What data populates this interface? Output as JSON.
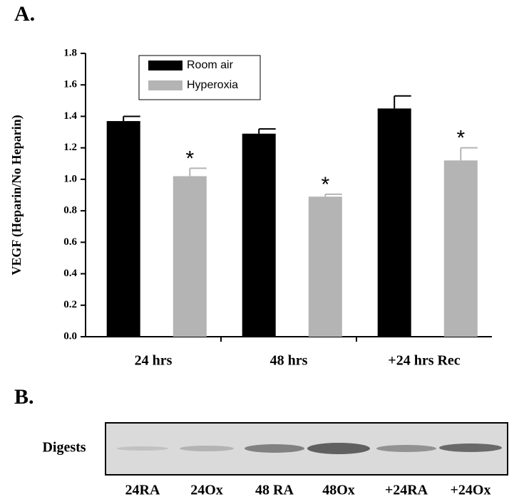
{
  "panels": {
    "a": "A.",
    "b": "B."
  },
  "chart_data": {
    "type": "bar",
    "ylabel": "VEGF (Heparin/No Heparin)",
    "categories": [
      "24 hrs",
      "48 hrs",
      "+24 hrs Rec"
    ],
    "series": [
      {
        "name": "Room air",
        "color": "#000000",
        "values": [
          1.37,
          1.29,
          1.45
        ],
        "errors": [
          0.03,
          0.03,
          0.08
        ]
      },
      {
        "name": "Hyperoxia",
        "color": "#b4b4b4",
        "values": [
          1.02,
          0.89,
          1.12
        ],
        "errors": [
          0.05,
          0.015,
          0.08
        ]
      }
    ],
    "annotations": [
      "*",
      "*",
      "*"
    ],
    "ylim": [
      0,
      1.8
    ],
    "yticks": [
      {
        "value": 0,
        "label": "0.0"
      },
      {
        "value": 0.2,
        "label": "0.2"
      },
      {
        "value": 0.4,
        "label": "0.4"
      },
      {
        "value": 0.6,
        "label": "0.6"
      },
      {
        "value": 0.8,
        "label": "0.8"
      },
      {
        "value": 1.0,
        "label": "1.0"
      },
      {
        "value": 1.2,
        "label": "1.2"
      },
      {
        "value": 1.4,
        "label": "1.4"
      },
      {
        "value": 1.6,
        "label": "1.6"
      },
      {
        "value": 1.8,
        "label": "1.8"
      }
    ],
    "legend": "upper left",
    "grid": false
  },
  "blot": {
    "row_label": "Digests",
    "lanes": [
      "24RA",
      "24Ox",
      "48 RA",
      "48Ox",
      "+24RA",
      "+24Ox"
    ]
  }
}
